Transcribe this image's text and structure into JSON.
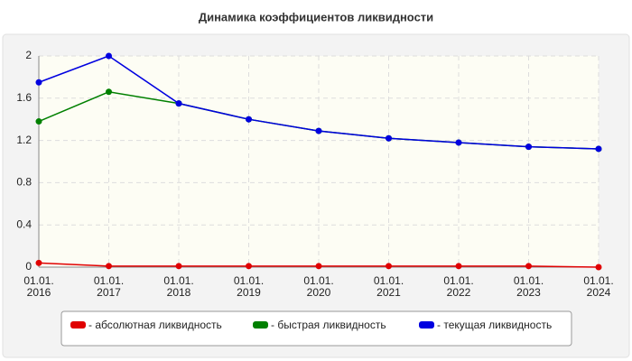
{
  "chart_data": {
    "type": "line",
    "title": "Динамика коэффициентов ликвидности",
    "categories": [
      "01.01.\n2016",
      "01.01.\n2017",
      "01.01.\n2018",
      "01.01.\n2019",
      "01.01.\n2020",
      "01.01.\n2021",
      "01.01.\n2022",
      "01.01.\n2023",
      "01.01.\n2024"
    ],
    "series": [
      {
        "name": "- абсолютная ликвидность",
        "color": "#e00000",
        "values": [
          0.04,
          0.01,
          0.01,
          0.01,
          0.01,
          0.01,
          0.01,
          0.01,
          0.0
        ]
      },
      {
        "name": "- быстрая ликвидность",
        "color": "#008000",
        "values": [
          1.38,
          1.66,
          1.55,
          1.4,
          1.29,
          1.22,
          1.18,
          1.14,
          1.12
        ]
      },
      {
        "name": "- текущая ликвидность",
        "color": "#0000e0",
        "values": [
          1.75,
          2.0,
          1.55,
          1.4,
          1.29,
          1.22,
          1.18,
          1.14,
          1.12
        ]
      }
    ],
    "ylim": [
      0,
      2
    ],
    "yticks": [
      0,
      0.4,
      0.8,
      1.2,
      1.6,
      2
    ],
    "grid": true
  }
}
